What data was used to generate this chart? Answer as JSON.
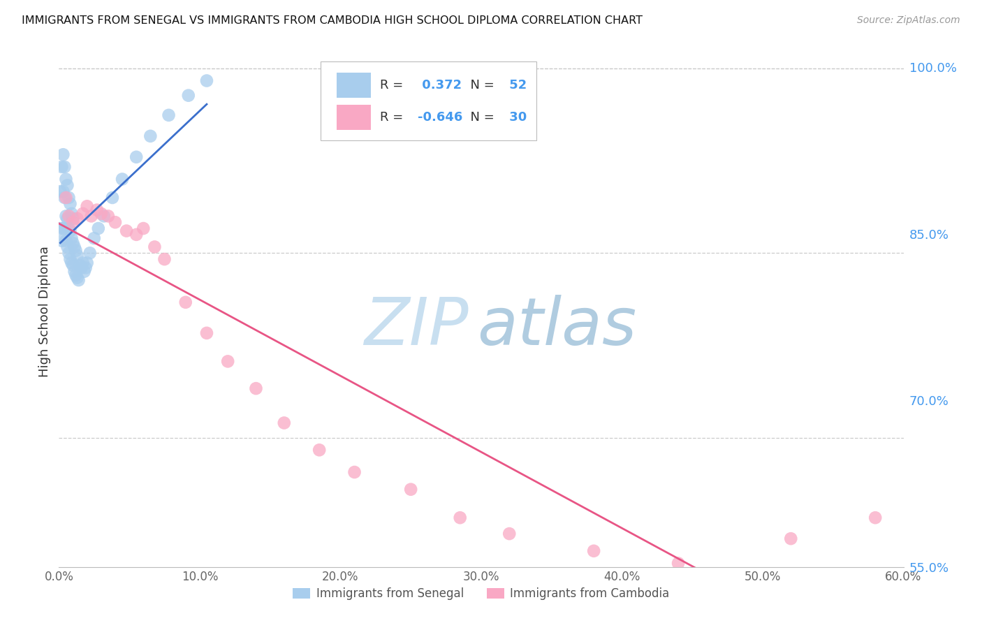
{
  "title": "IMMIGRANTS FROM SENEGAL VS IMMIGRANTS FROM CAMBODIA HIGH SCHOOL DIPLOMA CORRELATION CHART",
  "source": "Source: ZipAtlas.com",
  "ylabel": "High School Diploma",
  "legend_label_blue": "Immigrants from Senegal",
  "legend_label_pink": "Immigrants from Cambodia",
  "R_blue": 0.372,
  "N_blue": 52,
  "R_pink": -0.646,
  "N_pink": 30,
  "xmin": 0.0,
  "xmax": 0.6,
  "ymin": 0.595,
  "ymax": 1.01,
  "yticks": [
    1.0,
    0.85,
    0.7,
    0.55
  ],
  "xticks": [
    0.0,
    0.1,
    0.2,
    0.3,
    0.4,
    0.5,
    0.6
  ],
  "color_blue": "#A8CDED",
  "color_pink": "#F9A8C4",
  "line_color_blue": "#3B6FCC",
  "line_color_pink": "#E85585",
  "watermark_zip": "ZIP",
  "watermark_atlas": "atlas",
  "watermark_color_zip": "#C8DFF0",
  "watermark_color_atlas": "#B0CCE0",
  "blue_scatter_x": [
    0.001,
    0.001,
    0.002,
    0.002,
    0.003,
    0.003,
    0.003,
    0.004,
    0.004,
    0.004,
    0.005,
    0.005,
    0.005,
    0.006,
    0.006,
    0.006,
    0.007,
    0.007,
    0.007,
    0.008,
    0.008,
    0.008,
    0.009,
    0.009,
    0.009,
    0.01,
    0.01,
    0.01,
    0.011,
    0.011,
    0.012,
    0.012,
    0.013,
    0.013,
    0.014,
    0.015,
    0.016,
    0.017,
    0.018,
    0.019,
    0.02,
    0.022,
    0.025,
    0.028,
    0.032,
    0.038,
    0.045,
    0.055,
    0.065,
    0.078,
    0.092,
    0.105
  ],
  "blue_scatter_y": [
    0.87,
    0.9,
    0.86,
    0.92,
    0.87,
    0.9,
    0.93,
    0.87,
    0.895,
    0.92,
    0.86,
    0.88,
    0.91,
    0.855,
    0.878,
    0.905,
    0.85,
    0.87,
    0.895,
    0.845,
    0.868,
    0.89,
    0.842,
    0.862,
    0.882,
    0.84,
    0.858,
    0.878,
    0.835,
    0.855,
    0.832,
    0.852,
    0.83,
    0.848,
    0.828,
    0.84,
    0.838,
    0.842,
    0.835,
    0.838,
    0.842,
    0.85,
    0.862,
    0.87,
    0.88,
    0.895,
    0.91,
    0.928,
    0.945,
    0.962,
    0.978,
    0.99
  ],
  "pink_scatter_x": [
    0.005,
    0.007,
    0.01,
    0.013,
    0.017,
    0.02,
    0.023,
    0.027,
    0.03,
    0.035,
    0.04,
    0.048,
    0.055,
    0.06,
    0.068,
    0.075,
    0.09,
    0.105,
    0.12,
    0.14,
    0.16,
    0.185,
    0.21,
    0.25,
    0.285,
    0.32,
    0.38,
    0.44,
    0.52,
    0.58
  ],
  "pink_scatter_y": [
    0.895,
    0.88,
    0.875,
    0.878,
    0.882,
    0.888,
    0.88,
    0.885,
    0.882,
    0.88,
    0.875,
    0.868,
    0.865,
    0.87,
    0.855,
    0.845,
    0.81,
    0.785,
    0.762,
    0.74,
    0.712,
    0.69,
    0.672,
    0.658,
    0.635,
    0.622,
    0.608,
    0.598,
    0.618,
    0.635
  ],
  "blue_line_x0": 0.001,
  "blue_line_x1": 0.105,
  "pink_line_x0": 0.0,
  "pink_line_x1": 0.6
}
